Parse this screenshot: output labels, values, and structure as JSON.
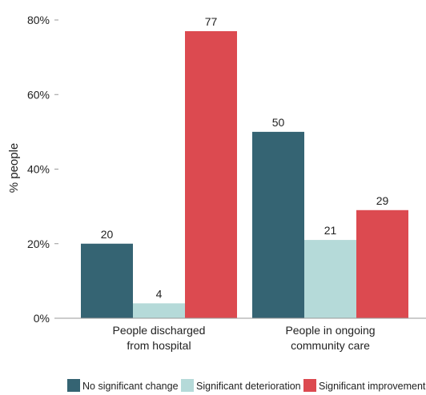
{
  "chart_data": {
    "type": "bar",
    "ylabel": "% people",
    "ylim": [
      0,
      80
    ],
    "yticks": [
      "0%",
      "20%",
      "40%",
      "60%",
      "80%"
    ],
    "ytick_values": [
      0,
      20,
      40,
      60,
      80
    ],
    "grid": false,
    "legend_position": "bottom",
    "categories": [
      [
        "People discharged",
        "from hospital"
      ],
      [
        "People in ongoing",
        "community care"
      ]
    ],
    "series": [
      {
        "name": "No significant change",
        "color": "#356473",
        "values": [
          20,
          50
        ],
        "labels": [
          "20",
          "50"
        ]
      },
      {
        "name": "Significant deterioration",
        "color": "#b5dad9",
        "values": [
          4,
          21
        ],
        "labels": [
          "4",
          "21"
        ]
      },
      {
        "name": "Significant improvement",
        "color": "#dc4a50",
        "values": [
          77,
          29
        ],
        "labels": [
          "77",
          "29"
        ]
      }
    ]
  }
}
